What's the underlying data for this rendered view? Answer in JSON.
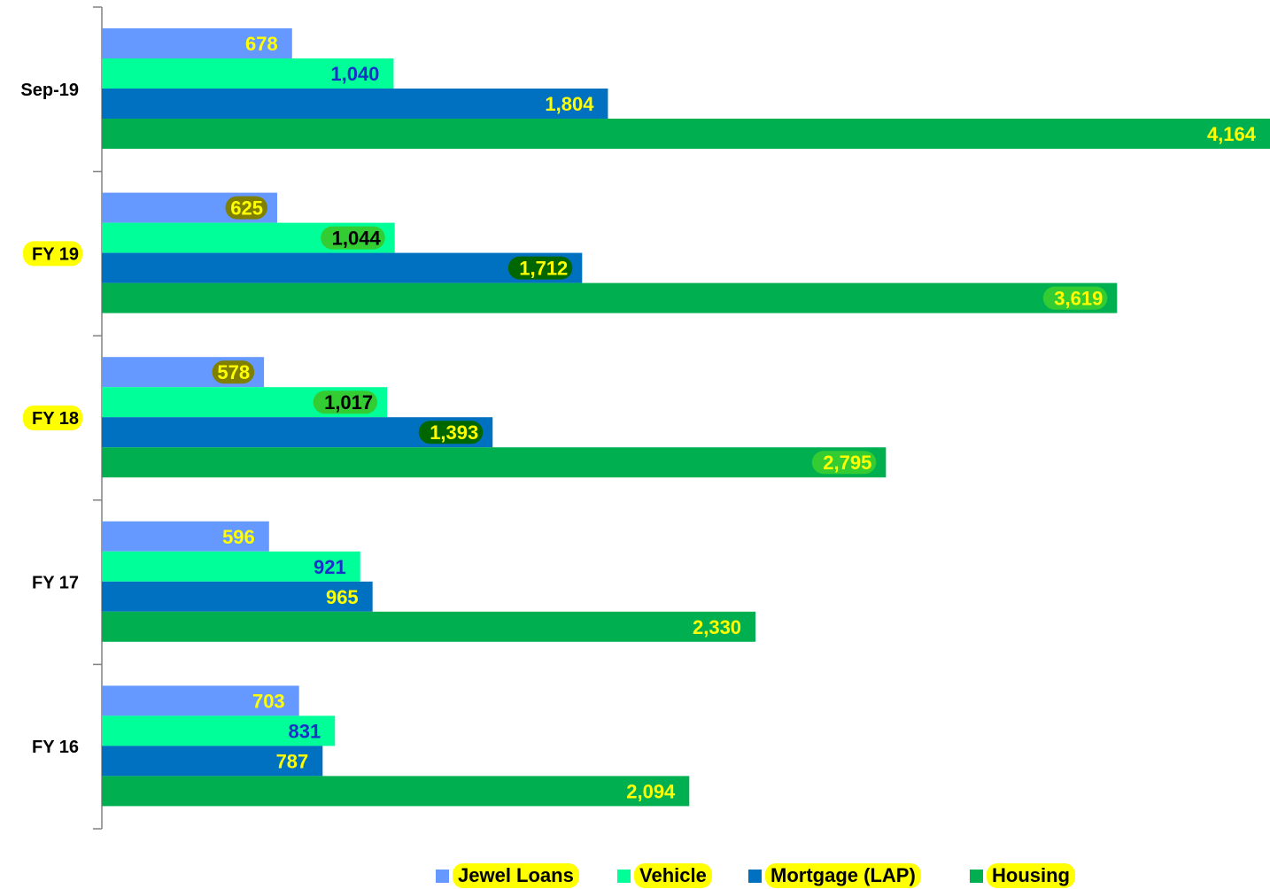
{
  "chart_data": {
    "type": "bar",
    "orientation": "horizontal",
    "categories": [
      "FY 16",
      "FY 17",
      "FY 18",
      "FY 19",
      "Sep-19"
    ],
    "series": [
      {
        "name": "Jewel Loans",
        "values": [
          703,
          596,
          578,
          625,
          678
        ],
        "color": "#6699ff"
      },
      {
        "name": "Vehicle",
        "values": [
          831,
          921,
          1017,
          1044,
          1040
        ],
        "color": "#00ff99"
      },
      {
        "name": "Mortgage (LAP)",
        "values": [
          787,
          965,
          1393,
          1712,
          1804
        ],
        "color": "#0070c0"
      },
      {
        "name": "Housing",
        "values": [
          2094,
          2330,
          2795,
          3619,
          4164
        ],
        "color": "#00b050"
      }
    ],
    "value_labels": [
      [
        "703",
        "831",
        "787",
        "2,094"
      ],
      [
        "596",
        "921",
        "965",
        "2,330"
      ],
      [
        "578",
        "1,017",
        "1,393",
        "2,795"
      ],
      [
        "625",
        "1,044",
        "1,712",
        "3,619"
      ],
      [
        "678",
        "1,040",
        "1,804",
        "4,164"
      ]
    ],
    "highlighted_categories": [
      "FY 18",
      "FY 19"
    ],
    "title": "",
    "xlabel": "",
    "ylabel": "",
    "xlim": [
      0,
      4164
    ],
    "grid": false,
    "legend_position": "bottom"
  }
}
